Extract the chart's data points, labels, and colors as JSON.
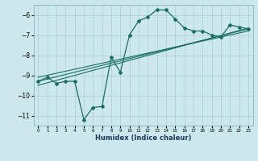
{
  "xlabel": "Humidex (Indice chaleur)",
  "background_color": "#cde8ec",
  "grid_color": "#aacdd4",
  "line_color": "#1a6e62",
  "xlim": [
    -0.5,
    23.5
  ],
  "ylim": [
    -11.5,
    -5.5
  ],
  "yticks": [
    -11,
    -10,
    -9,
    -8,
    -7,
    -6
  ],
  "xticks": [
    0,
    1,
    2,
    3,
    4,
    5,
    6,
    7,
    8,
    9,
    10,
    11,
    12,
    13,
    14,
    15,
    16,
    17,
    18,
    19,
    20,
    21,
    22,
    23
  ],
  "series_main": {
    "x": [
      0,
      1,
      2,
      3,
      4,
      5,
      6,
      7,
      8,
      9,
      10,
      11,
      12,
      13,
      14,
      15,
      16,
      17,
      18,
      19,
      20,
      21,
      22,
      23
    ],
    "y": [
      -9.3,
      -9.1,
      -9.4,
      -9.3,
      -9.3,
      -11.2,
      -10.6,
      -10.55,
      -8.1,
      -8.85,
      -7.0,
      -6.3,
      -6.1,
      -5.75,
      -5.75,
      -6.2,
      -6.65,
      -6.8,
      -6.8,
      -7.0,
      -7.1,
      -6.5,
      -6.6,
      -6.7
    ]
  },
  "series_lines": [
    {
      "x": [
        0,
        23
      ],
      "y": [
        -9.3,
        -6.7
      ]
    },
    {
      "x": [
        0,
        23
      ],
      "y": [
        -9.1,
        -6.8
      ]
    },
    {
      "x": [
        0,
        23
      ],
      "y": [
        -9.5,
        -6.65
      ]
    }
  ]
}
